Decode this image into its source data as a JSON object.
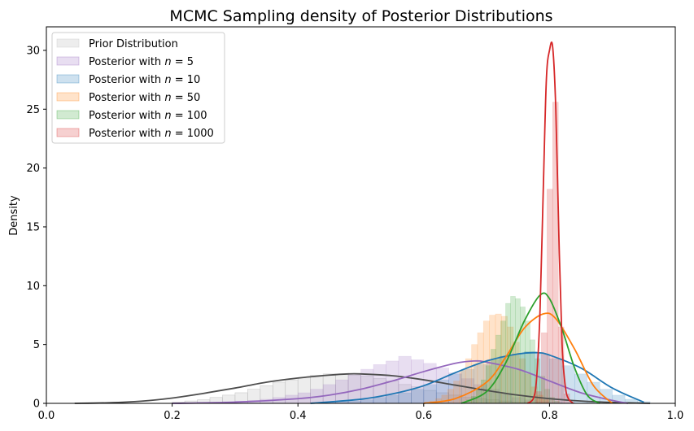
{
  "chart_data": {
    "type": "area",
    "title": "MCMC Sampling density of Posterior Distributions",
    "xlabel": "",
    "ylabel": "Density",
    "xlim": [
      0.0,
      1.0
    ],
    "ylim": [
      0,
      32
    ],
    "xticks": [
      "0.0",
      "0.2",
      "0.4",
      "0.6",
      "0.8",
      "1.0"
    ],
    "yticks": [
      "0",
      "5",
      "10",
      "15",
      "20",
      "25",
      "30"
    ],
    "legend_position": "upper-left",
    "grid": false,
    "series": [
      {
        "name": "Prior Distribution",
        "legend_prefix": "Prior Distribution",
        "legend_n": "",
        "line_color": "#4d4d4d",
        "fill_color": "#cccccc",
        "bins": {
          "start": 0.2,
          "width": 0.02,
          "heights": [
            0.1,
            0.2,
            0.3,
            0.5,
            0.7,
            0.9,
            1.2,
            1.5,
            1.8,
            2.0,
            2.2,
            2.4,
            2.5,
            2.5,
            2.4,
            2.3,
            2.1,
            1.9,
            1.6,
            1.4,
            1.1,
            0.9,
            0.7,
            0.5,
            0.4,
            0.3,
            0.2,
            0.1,
            0.1,
            0.05
          ]
        },
        "kde": {
          "x": [
            0.045,
            0.1,
            0.15,
            0.2,
            0.25,
            0.3,
            0.35,
            0.4,
            0.45,
            0.48,
            0.5,
            0.55,
            0.6,
            0.65,
            0.7,
            0.75,
            0.8,
            0.85,
            0.9,
            0.96
          ],
          "y": [
            0.0,
            0.05,
            0.18,
            0.45,
            0.85,
            1.3,
            1.8,
            2.15,
            2.4,
            2.5,
            2.5,
            2.35,
            2.0,
            1.55,
            1.1,
            0.7,
            0.4,
            0.2,
            0.08,
            0.0
          ]
        }
      },
      {
        "name": "Posterior with n = 5",
        "legend_prefix": "Posterior with ",
        "legend_n": "5",
        "line_color": "#9467bd",
        "fill_color": "#9467bd",
        "bins": {
          "start": 0.2,
          "width": 0.02,
          "heights": [
            0.05,
            0.05,
            0.1,
            0.1,
            0.15,
            0.2,
            0.25,
            0.35,
            0.5,
            0.7,
            0.9,
            1.2,
            1.6,
            2.0,
            2.5,
            2.9,
            3.3,
            3.6,
            4.0,
            3.7,
            3.4,
            3.0,
            2.6,
            2.1,
            1.6,
            1.2,
            0.8,
            0.5,
            0.3,
            0.15,
            0.08,
            0.04,
            0.02,
            0.01,
            0.01,
            0.0
          ]
        },
        "kde": {
          "x": [
            0.2,
            0.3,
            0.4,
            0.45,
            0.5,
            0.55,
            0.6,
            0.65,
            0.68,
            0.7,
            0.75,
            0.8,
            0.85,
            0.9,
            0.925
          ],
          "y": [
            0.0,
            0.1,
            0.4,
            0.7,
            1.2,
            1.9,
            2.7,
            3.4,
            3.6,
            3.5,
            2.9,
            1.9,
            0.9,
            0.25,
            0.0
          ]
        }
      },
      {
        "name": "Posterior with n = 10",
        "legend_prefix": "Posterior with ",
        "legend_n": "10",
        "line_color": "#1f77b4",
        "fill_color": "#1f77b4",
        "bins": {
          "start": 0.42,
          "width": 0.02,
          "heights": [
            0.05,
            0.1,
            0.15,
            0.2,
            0.3,
            0.5,
            0.7,
            0.9,
            1.2,
            1.6,
            2.0,
            2.5,
            2.9,
            3.3,
            3.7,
            4.0,
            4.2,
            4.4,
            4.2,
            3.8,
            3.2,
            2.5,
            1.8,
            1.2,
            0.7,
            0.35,
            0.15
          ]
        },
        "kde": {
          "x": [
            0.42,
            0.5,
            0.55,
            0.6,
            0.65,
            0.7,
            0.75,
            0.78,
            0.8,
            0.85,
            0.9,
            0.95
          ],
          "y": [
            0.0,
            0.35,
            0.8,
            1.5,
            2.6,
            3.6,
            4.2,
            4.3,
            4.1,
            3.0,
            1.3,
            0.1
          ]
        }
      },
      {
        "name": "Posterior with n = 50",
        "legend_prefix": "Posterior with ",
        "legend_n": "50",
        "line_color": "#ff7f0e",
        "fill_color": "#ff7f0e",
        "bins": {
          "start": 0.6,
          "width": 0.0095,
          "heights": [
            0.1,
            0.2,
            0.4,
            0.7,
            1.2,
            1.9,
            2.8,
            3.8,
            5.0,
            6.0,
            7.0,
            7.5,
            7.6,
            7.4,
            6.5,
            5.2,
            3.8,
            2.5,
            1.4,
            0.7,
            0.3
          ]
        },
        "kde": {
          "x": [
            0.6,
            0.65,
            0.7,
            0.73,
            0.76,
            0.79,
            0.81,
            0.84,
            0.87,
            0.9
          ],
          "y": [
            0.0,
            0.4,
            1.8,
            3.9,
            6.4,
            7.6,
            7.2,
            4.6,
            1.5,
            0.0
          ]
        }
      },
      {
        "name": "Posterior with n = 100",
        "legend_prefix": "Posterior with ",
        "legend_n": "100",
        "line_color": "#2ca02c",
        "fill_color": "#2ca02c",
        "bins": {
          "start": 0.66,
          "width": 0.0078,
          "heights": [
            0.1,
            0.3,
            0.6,
            1.2,
            2.0,
            3.2,
            4.6,
            5.8,
            7.0,
            8.5,
            9.1,
            8.9,
            8.2,
            7.0,
            5.4,
            3.8,
            2.3,
            1.2,
            0.5,
            0.2
          ]
        },
        "kde": {
          "x": [
            0.66,
            0.7,
            0.73,
            0.76,
            0.785,
            0.8,
            0.82,
            0.84,
            0.86,
            0.88
          ],
          "y": [
            0.0,
            1.0,
            3.4,
            7.0,
            9.2,
            8.9,
            6.3,
            3.0,
            0.7,
            0.0
          ]
        }
      },
      {
        "name": "Posterior with n = 1000",
        "legend_prefix": "Posterior with ",
        "legend_n": "1000",
        "line_color": "#d62728",
        "fill_color": "#d62728",
        "bins": {
          "start": 0.778,
          "width": 0.009,
          "heights": [
            1.0,
            6.0,
            18.2,
            25.6,
            6.5,
            0.8
          ]
        },
        "kde": {
          "x": [
            0.765,
            0.775,
            0.78,
            0.785,
            0.79,
            0.795,
            0.8,
            0.805,
            0.81,
            0.815,
            0.82,
            0.825,
            0.83,
            0.838
          ],
          "y": [
            0.0,
            0.5,
            2.5,
            8.0,
            18.0,
            27.5,
            30.0,
            30.3,
            25.0,
            14.0,
            5.0,
            1.5,
            0.4,
            0.0
          ]
        }
      }
    ]
  }
}
